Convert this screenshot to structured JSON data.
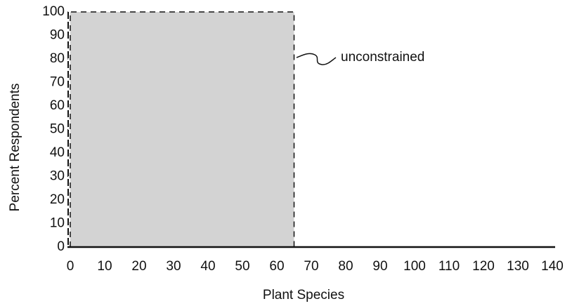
{
  "chart_data": {
    "type": "area",
    "x_label": "Plant Species",
    "y_label": "Percent Respondents",
    "annotation": "unconstrained",
    "x": [
      0,
      65
    ],
    "values": [
      100,
      100
    ],
    "color": "#d3d3d3",
    "xlim": [
      0,
      140
    ],
    "xticks": [
      0,
      10,
      20,
      30,
      40,
      50,
      60,
      70,
      80,
      90,
      100,
      110,
      120,
      130,
      140
    ],
    "ylim": [
      0,
      100
    ],
    "yticks": [
      0,
      10,
      20,
      30,
      40,
      50,
      60,
      70,
      80,
      90,
      100
    ]
  }
}
